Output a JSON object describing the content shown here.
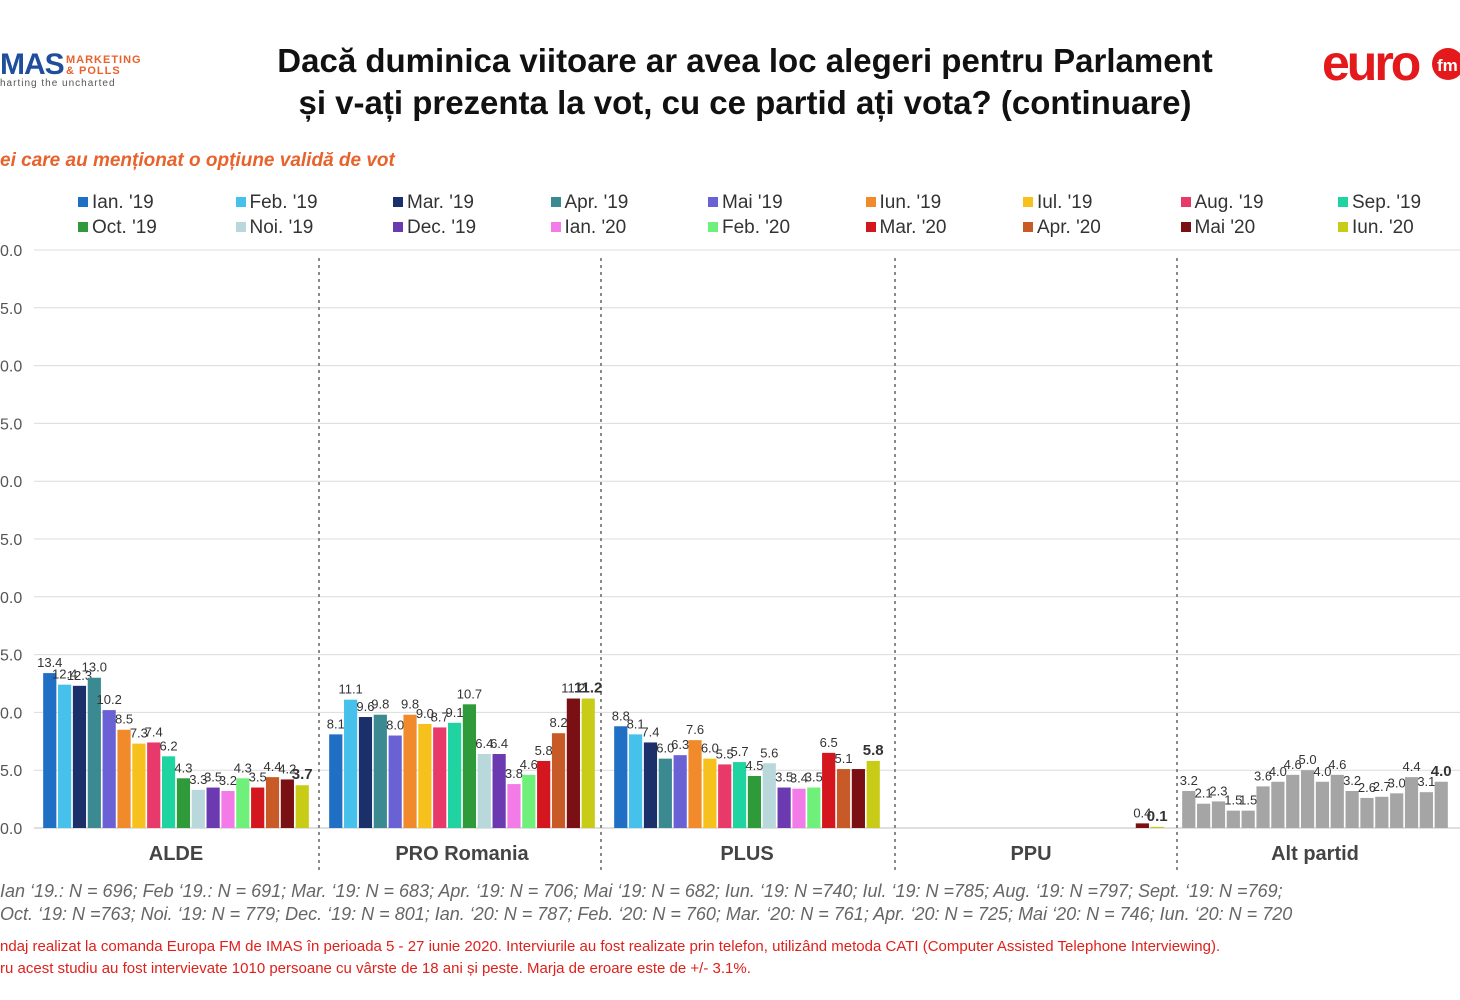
{
  "header": {
    "brand_left_mark": "MAS",
    "brand_left_line1": "MARKETING",
    "brand_left_line2": "& POLLS",
    "brand_left_tagline": "harting the uncharted",
    "brand_right": "euro fm",
    "title_line1": "Dacă duminica viitoare ar avea loc alegeri pentru Parlament",
    "title_line2": "și v-ați prezenta la vot, cu ce partid ați vota? (continuare)",
    "subtitle": "ei care au menționat o opțiune validă de vot"
  },
  "colors": {
    "title": "#111111",
    "subtitle": "#e8622c",
    "footer": "#e0201b",
    "brand_red": "#e3191b",
    "brand_blue": "#1f4e9d"
  },
  "chart_data": {
    "type": "bar",
    "categories": [
      "ALDE",
      "PRO Romania",
      "PLUS",
      "PPU",
      "Alt partid"
    ],
    "ylim": [
      0,
      50
    ],
    "y_ticks": [
      "0.0",
      "5.0",
      "0.0",
      "5.0",
      "0.0",
      "5.0",
      "0.0",
      "5.0",
      "0.0",
      "5.0",
      "0.0"
    ],
    "grid": true,
    "legend_position": "top",
    "series": [
      {
        "name": "Ian. '19",
        "color": "#1f6fc4",
        "values": [
          13.4,
          8.1,
          8.8,
          null,
          3.2
        ]
      },
      {
        "name": "Feb. '19",
        "color": "#46c1ec",
        "values": [
          12.4,
          11.1,
          8.1,
          null,
          2.1
        ]
      },
      {
        "name": "Mar. '19",
        "color": "#1b2f6b",
        "values": [
          12.3,
          9.6,
          7.4,
          null,
          2.3
        ]
      },
      {
        "name": "Apr. '19",
        "color": "#3c8a91",
        "values": [
          13.0,
          9.8,
          6.0,
          null,
          1.5
        ]
      },
      {
        "name": "Mai '19",
        "color": "#6a62d4",
        "values": [
          10.2,
          8.0,
          6.3,
          null,
          1.5
        ]
      },
      {
        "name": "Iun. '19",
        "color": "#f08a2a",
        "values": [
          8.5,
          9.8,
          7.6,
          null,
          3.6
        ]
      },
      {
        "name": "Iul. '19",
        "color": "#f6c11c",
        "values": [
          7.3,
          9.0,
          6.0,
          null,
          4.0
        ]
      },
      {
        "name": "Aug. '19",
        "color": "#e83a6a",
        "values": [
          7.4,
          8.7,
          5.5,
          null,
          4.6
        ]
      },
      {
        "name": "Sep. '19",
        "color": "#1fd4a0",
        "values": [
          6.2,
          9.1,
          5.7,
          null,
          5.0
        ]
      },
      {
        "name": "Oct. '19",
        "color": "#2f9a3a",
        "values": [
          4.3,
          10.7,
          4.5,
          null,
          4.0
        ]
      },
      {
        "name": "Noi. '19",
        "color": "#b8d8dc",
        "values": [
          3.3,
          6.4,
          5.6,
          null,
          4.6
        ]
      },
      {
        "name": "Dec. '19",
        "color": "#6c3ab0",
        "values": [
          3.5,
          6.4,
          3.5,
          null,
          3.2
        ]
      },
      {
        "name": "Ian. '20",
        "color": "#f27be8",
        "values": [
          3.2,
          3.8,
          3.4,
          null,
          2.6
        ]
      },
      {
        "name": "Feb. '20",
        "color": "#6ef07a",
        "values": [
          4.3,
          4.6,
          3.5,
          null,
          2.7
        ]
      },
      {
        "name": "Mar. '20",
        "color": "#d4161e",
        "values": [
          3.5,
          5.8,
          6.5,
          null,
          3.0
        ]
      },
      {
        "name": "Apr. '20",
        "color": "#c85a28",
        "values": [
          4.4,
          8.2,
          5.1,
          null,
          4.4
        ]
      },
      {
        "name": "Mai '20",
        "color": "#7a0f14",
        "values": [
          4.2,
          11.2,
          5.1,
          0.4,
          3.1
        ]
      },
      {
        "name": "Iun. '20",
        "color": "#c8cc16",
        "values": [
          3.7,
          11.2,
          5.8,
          0.1,
          4.0
        ]
      }
    ],
    "data_labels": [
      [
        "13.4",
        "12.4",
        "12.3",
        "13.0",
        "10.2",
        "8.5",
        "7.3",
        "7.4",
        "6.2",
        "4.3",
        "3.3",
        "3.5",
        "3.2",
        "4.3",
        "3.5",
        "4.4",
        "4.2",
        "3.7"
      ],
      [
        "8.1",
        "11.1",
        "9.6",
        "9.8",
        "8.0",
        "9.8",
        "9.0",
        "8.7",
        "9.1",
        "10.7",
        "6.4",
        "6.4",
        "3.8",
        "4.6",
        "5.8",
        "8.2",
        "11.2",
        "11.2"
      ],
      [
        "8.8",
        "8.1",
        "7.4",
        "6.0",
        "6.3",
        "7.6",
        "6.0",
        "5.5",
        "5.7",
        "4.5",
        "5.6",
        "3.5",
        "3.4",
        "3.5",
        "6.5",
        "5.1",
        "",
        "5.8"
      ],
      [
        "",
        "",
        "",
        "",
        "",
        "",
        "",
        "",
        "",
        "",
        "",
        "",
        "",
        "",
        "",
        "",
        "0.4",
        "0.1"
      ],
      [
        "3.2",
        "2.1",
        "2.3",
        "1.5",
        "1.5",
        "3.6",
        "4.0",
        "4.6",
        "5.0",
        "4.0",
        "4.6",
        "3.2",
        "2.6",
        "2.7",
        "3.0",
        "4.4",
        "3.1",
        "4.0"
      ]
    ],
    "grey_group": "Alt partid",
    "grey_color": "#a5a5a5"
  },
  "notes": {
    "line1": "Ian ‘19.: N = 696; Feb ‘19.: N = 691; Mar. ‘19: N = 683; Apr. ‘19: N = 706; Mai ‘19: N = 682; Iun. ‘19: N =740; Iul. ‘19: N =785; Aug. ‘19: N =797; Sept. ‘19: N =769;",
    "line2": "Oct. ‘19: N =763; Noi. ‘19: N = 779; Dec. ‘19: N = 801; Ian. ‘20: N = 787; Feb. ‘20: N = 760; Mar. ‘20: N = 761; Apr. ‘20: N = 725; Mai ‘20: N = 746; Iun. ‘20: N = 720"
  },
  "footer": {
    "line1": "ndaj realizat la comanda Europa FM de IMAS în perioada  5 - 27 iunie 2020. Interviurile au fost realizate prin telefon, utilizând metoda CATI (Computer Assisted Telephone Interviewing).",
    "line2": "ru acest studiu au fost intervievate 1010 persoane cu vârste de 18 ani și peste. Marja de eroare este de +/- 3.1%."
  }
}
